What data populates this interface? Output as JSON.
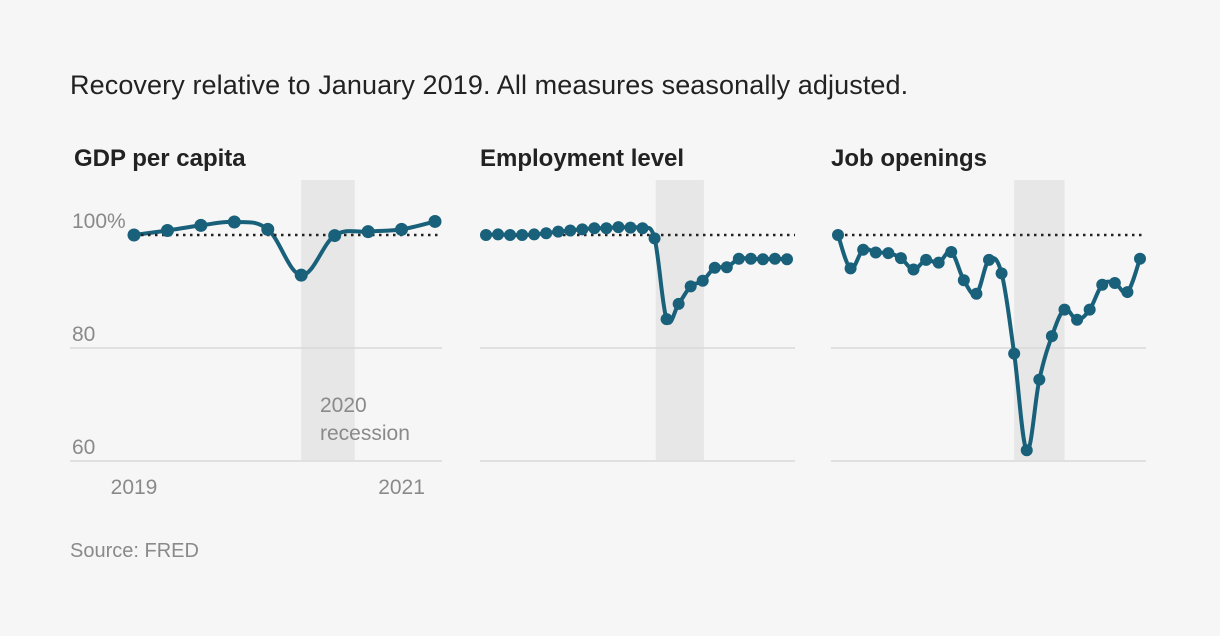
{
  "subtitle": "Recovery relative to January 2019. All measures seasonally adjusted.",
  "source": "Source: FRED",
  "colors": {
    "line": "#19607a",
    "recession": "#e7e7e7",
    "grid": "#d9d9d9",
    "baseline": "#222222",
    "axis_text": "#8a8a8a"
  },
  "annotation": {
    "line1": "2020",
    "line2": "recession"
  },
  "chart_data": [
    {
      "type": "line",
      "title": "GDP per capita",
      "x_range": [
        2019.0,
        2021.25
      ],
      "ylim": [
        55,
        105
      ],
      "y_ticks": [
        {
          "value": 100,
          "label": "100%"
        },
        {
          "value": 80,
          "label": "80"
        },
        {
          "value": 60,
          "label": "60"
        }
      ],
      "x_ticks": [
        {
          "value": 2019.0,
          "label": "2019"
        },
        {
          "value": 2021.0,
          "label": "2021"
        }
      ],
      "recession": [
        2020.25,
        2020.65
      ],
      "baseline": 100,
      "x": [
        2019.0,
        2019.25,
        2019.5,
        2019.75,
        2020.0,
        2020.25,
        2020.5,
        2020.75,
        2021.0,
        2021.25
      ],
      "values": [
        100.0,
        100.8,
        101.7,
        102.3,
        101.0,
        92.9,
        99.9,
        100.6,
        101.0,
        102.4
      ]
    },
    {
      "type": "line",
      "title": "Employment level",
      "x_range": [
        0,
        25
      ],
      "ylim": [
        55,
        105
      ],
      "y_ticks": [
        {
          "value": 100,
          "label": ""
        },
        {
          "value": 80,
          "label": ""
        },
        {
          "value": 60,
          "label": ""
        }
      ],
      "x_ticks": [],
      "recession": [
        14.1,
        18.1
      ],
      "baseline": 100,
      "x": [
        0,
        1,
        2,
        3,
        4,
        5,
        6,
        7,
        8,
        9,
        10,
        11,
        12,
        13,
        14,
        15,
        16,
        17,
        18,
        19,
        20,
        21,
        22,
        23,
        24,
        25
      ],
      "values": [
        100.0,
        100.1,
        100.0,
        100.0,
        100.1,
        100.3,
        100.6,
        100.8,
        101.0,
        101.2,
        101.2,
        101.4,
        101.3,
        101.2,
        99.4,
        85.1,
        87.8,
        90.9,
        91.9,
        94.2,
        94.3,
        95.8,
        95.8,
        95.7,
        95.8,
        95.7
      ]
    },
    {
      "type": "line",
      "title": "Job openings",
      "x_range": [
        0,
        24
      ],
      "ylim": [
        55,
        105
      ],
      "y_ticks": [
        {
          "value": 100,
          "label": ""
        },
        {
          "value": 80,
          "label": ""
        },
        {
          "value": 60,
          "label": ""
        }
      ],
      "x_ticks": [],
      "recession": [
        14.0,
        18.0
      ],
      "baseline": 100,
      "x": [
        0,
        1,
        2,
        3,
        4,
        5,
        6,
        7,
        8,
        9,
        10,
        11,
        12,
        13,
        14,
        15,
        16,
        17,
        18,
        19,
        20,
        21,
        22,
        23,
        24
      ],
      "values": [
        100.0,
        94.1,
        97.4,
        96.9,
        96.8,
        95.9,
        93.9,
        95.6,
        95.1,
        97.0,
        92.0,
        89.6,
        95.6,
        93.2,
        79.0,
        61.9,
        74.4,
        82.1,
        86.8,
        85.0,
        86.8,
        91.2,
        91.5,
        89.9,
        95.8
      ]
    }
  ]
}
